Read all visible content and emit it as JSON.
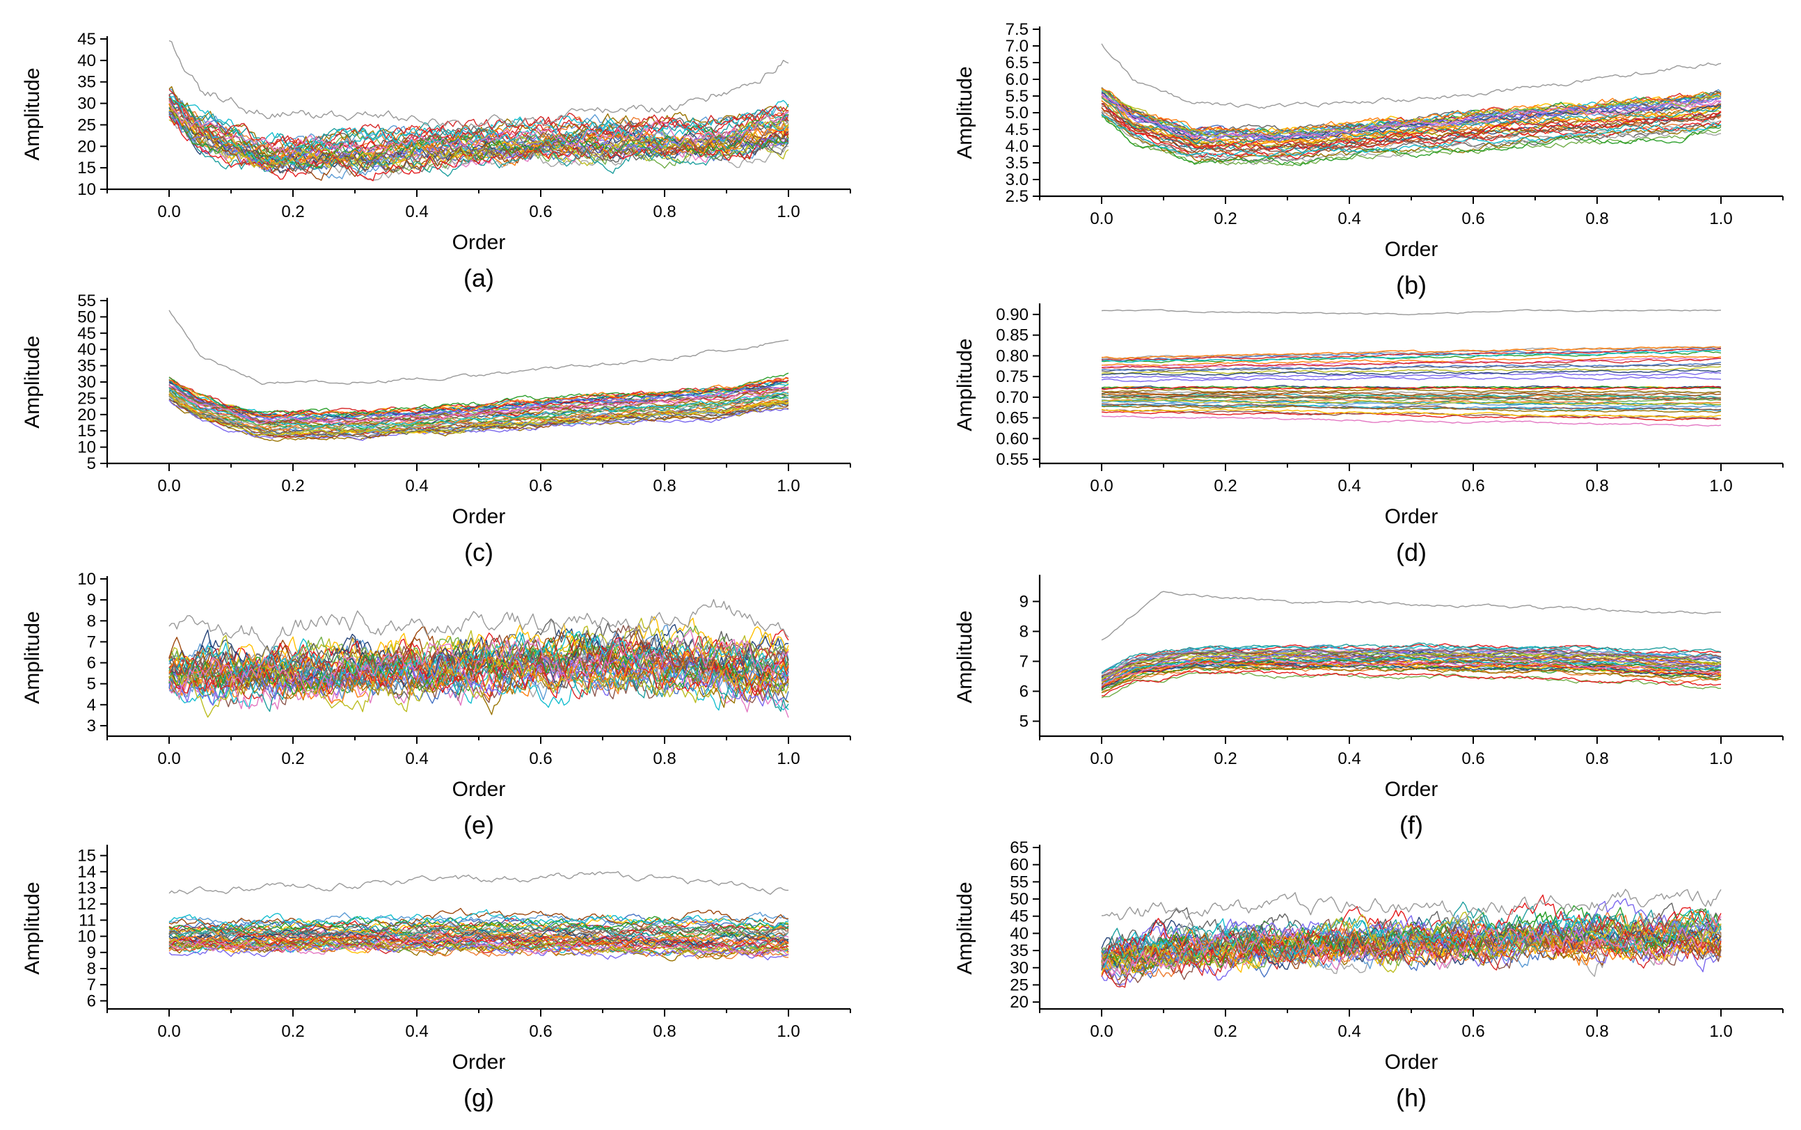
{
  "chart_data": [
    {
      "panel": "(a)",
      "type": "line",
      "xlabel": "Order",
      "ylabel": "Amplitude",
      "xlim": [
        -0.1,
        1.1
      ],
      "ylim": [
        10,
        45
      ],
      "xticks": [
        0.0,
        0.2,
        0.4,
        0.6,
        0.8,
        1.0
      ],
      "xtick_labels": [
        "0.0",
        "0.2",
        "0.4",
        "0.6",
        "0.8",
        "1.0"
      ],
      "yticks": [
        10,
        15,
        20,
        25,
        30,
        35,
        40,
        45
      ],
      "ytick_labels": [
        "10",
        "15",
        "20",
        "25",
        "30",
        "35",
        "40",
        "45"
      ],
      "series_count": 40,
      "profile": {
        "x": [
          0,
          0.05,
          0.15,
          0.3,
          0.5,
          0.7,
          0.9,
          1.0
        ],
        "y": [
          30,
          24,
          18,
          19,
          21,
          22,
          22,
          25
        ]
      },
      "spread": 3.5,
      "noise": 2.2,
      "outlier": {
        "x": [
          0,
          0.05,
          0.15,
          0.5,
          0.85,
          1.0
        ],
        "y": [
          44,
          33,
          28,
          25,
          30,
          40
        ]
      }
    },
    {
      "panel": "(b)",
      "type": "line",
      "xlabel": "Order",
      "ylabel": "Amplitude",
      "xlim": [
        -0.1,
        1.1
      ],
      "ylim": [
        2.5,
        7.5
      ],
      "xticks": [
        0.0,
        0.2,
        0.4,
        0.6,
        0.8,
        1.0
      ],
      "xtick_labels": [
        "0.0",
        "0.2",
        "0.4",
        "0.6",
        "0.8",
        "1.0"
      ],
      "yticks": [
        2.5,
        3.0,
        3.5,
        4.0,
        4.5,
        5.0,
        5.5,
        6.0,
        6.5,
        7.0,
        7.5
      ],
      "ytick_labels": [
        "2.5",
        "3.0",
        "3.5",
        "4.0",
        "4.5",
        "5.0",
        "5.5",
        "6.0",
        "6.5",
        "7.0",
        "7.5"
      ],
      "series_count": 40,
      "profile": {
        "x": [
          0,
          0.05,
          0.15,
          0.3,
          0.5,
          0.7,
          0.9,
          1.0
        ],
        "y": [
          5.3,
          4.6,
          4.0,
          4.0,
          4.3,
          4.6,
          4.8,
          5.0
        ]
      },
      "spread": 0.55,
      "noise": 0.12,
      "outlier": {
        "x": [
          0,
          0.05,
          0.15,
          0.3,
          0.6,
          0.8,
          1.0
        ],
        "y": [
          7.1,
          6.0,
          5.3,
          5.2,
          5.5,
          6.0,
          6.5
        ]
      }
    },
    {
      "panel": "(c)",
      "type": "line",
      "xlabel": "Order",
      "ylabel": "Amplitude",
      "xlim": [
        -0.1,
        1.1
      ],
      "ylim": [
        5,
        55
      ],
      "xticks": [
        0.0,
        0.2,
        0.4,
        0.6,
        0.8,
        1.0
      ],
      "xtick_labels": [
        "0.0",
        "0.2",
        "0.4",
        "0.6",
        "0.8",
        "1.0"
      ],
      "yticks": [
        5,
        10,
        15,
        20,
        25,
        30,
        35,
        40,
        45,
        50,
        55
      ],
      "ytick_labels": [
        "5",
        "10",
        "15",
        "20",
        "25",
        "30",
        "35",
        "40",
        "45",
        "50",
        "55"
      ],
      "series_count": 40,
      "profile": {
        "x": [
          0,
          0.05,
          0.15,
          0.3,
          0.5,
          0.7,
          0.9,
          1.0
        ],
        "y": [
          28,
          22,
          17,
          17,
          19,
          22,
          24,
          27
        ]
      },
      "spread": 4.5,
      "noise": 0.9,
      "outlier": {
        "x": [
          0,
          0.05,
          0.15,
          0.3,
          0.5,
          0.8,
          1.0
        ],
        "y": [
          52,
          38,
          30,
          30,
          32,
          37,
          43
        ]
      }
    },
    {
      "panel": "(d)",
      "type": "line",
      "xlabel": "Order",
      "ylabel": "Amplitude",
      "xlim": [
        -0.1,
        1.1
      ],
      "ylim": [
        0.54,
        0.92
      ],
      "xticks": [
        0.0,
        0.2,
        0.4,
        0.6,
        0.8,
        1.0
      ],
      "xtick_labels": [
        "0.0",
        "0.2",
        "0.4",
        "0.6",
        "0.8",
        "1.0"
      ],
      "yticks": [
        0.55,
        0.6,
        0.65,
        0.7,
        0.75,
        0.8,
        0.85,
        0.9
      ],
      "ytick_labels": [
        "0.55",
        "0.60",
        "0.65",
        "0.70",
        "0.75",
        "0.80",
        "0.85",
        "0.90"
      ],
      "series_count": 40,
      "profile": {
        "x": [
          0,
          1.0
        ],
        "y": [
          0.72,
          0.72
        ]
      },
      "spread": 0.09,
      "noise": 0.003,
      "outlier": {
        "x": [
          0,
          0.5,
          0.7,
          1.0
        ],
        "y": [
          0.91,
          0.9,
          0.91,
          0.91
        ]
      }
    },
    {
      "panel": "(e)",
      "type": "line",
      "xlabel": "Order",
      "ylabel": "Amplitude",
      "xlim": [
        -0.1,
        1.1
      ],
      "ylim": [
        2.5,
        10
      ],
      "xticks": [
        0.0,
        0.2,
        0.4,
        0.6,
        0.8,
        1.0
      ],
      "xtick_labels": [
        "0.0",
        "0.2",
        "0.4",
        "0.6",
        "0.8",
        "1.0"
      ],
      "yticks": [
        3,
        4,
        5,
        6,
        7,
        8,
        9,
        10
      ],
      "ytick_labels": [
        "3",
        "4",
        "5",
        "6",
        "7",
        "8",
        "9",
        "10"
      ],
      "series_count": 40,
      "profile": {
        "x": [
          0,
          0.2,
          0.5,
          0.75,
          1.0
        ],
        "y": [
          5.5,
          5.6,
          5.9,
          6.2,
          5.5
        ]
      },
      "spread": 0.7,
      "noise": 0.9,
      "outlier": {
        "x": [
          0,
          0.3,
          0.6,
          0.9,
          1.0
        ],
        "y": [
          7.5,
          7.8,
          8.0,
          8.6,
          7.0
        ]
      }
    },
    {
      "panel": "(f)",
      "type": "line",
      "xlabel": "Order",
      "ylabel": "Amplitude",
      "xlim": [
        -0.1,
        1.1
      ],
      "ylim": [
        4.5,
        9.8
      ],
      "xticks": [
        0.0,
        0.2,
        0.4,
        0.6,
        0.8,
        1.0
      ],
      "xtick_labels": [
        "0.0",
        "0.2",
        "0.4",
        "0.6",
        "0.8",
        "1.0"
      ],
      "yticks": [
        5,
        6,
        7,
        8,
        9
      ],
      "ytick_labels": [
        "5",
        "6",
        "7",
        "8",
        "9"
      ],
      "series_count": 40,
      "profile": {
        "x": [
          0,
          0.05,
          0.15,
          0.5,
          0.8,
          1.0
        ],
        "y": [
          6.2,
          6.7,
          7.0,
          7.0,
          6.9,
          6.7
        ]
      },
      "spread": 0.55,
      "noise": 0.08,
      "outlier": {
        "x": [
          0,
          0.1,
          0.3,
          0.5,
          0.7,
          1.0
        ],
        "y": [
          7.7,
          9.3,
          9.0,
          8.9,
          8.8,
          8.6
        ]
      }
    },
    {
      "panel": "(g)",
      "type": "line",
      "xlabel": "Order",
      "ylabel": "Amplitude",
      "xlim": [
        -0.1,
        1.1
      ],
      "ylim": [
        5.5,
        15.5
      ],
      "xticks": [
        0.0,
        0.2,
        0.4,
        0.6,
        0.8,
        1.0
      ],
      "xtick_labels": [
        "0.0",
        "0.2",
        "0.4",
        "0.6",
        "0.8",
        "1.0"
      ],
      "yticks": [
        6,
        7,
        8,
        9,
        10,
        11,
        12,
        13,
        14,
        15
      ],
      "ytick_labels": [
        "6",
        "7",
        "8",
        "9",
        "10",
        "11",
        "12",
        "13",
        "14",
        "15"
      ],
      "series_count": 40,
      "profile": {
        "x": [
          0,
          0.5,
          1.0
        ],
        "y": [
          10.0,
          10.2,
          10.0
        ]
      },
      "spread": 1.0,
      "noise": 0.35,
      "outlier": {
        "x": [
          0,
          0.3,
          0.5,
          0.7,
          1.0
        ],
        "y": [
          12.8,
          13.2,
          13.5,
          13.8,
          12.8
        ]
      }
    },
    {
      "panel": "(h)",
      "type": "line",
      "xlabel": "Order",
      "ylabel": "Amplitude",
      "xlim": [
        -0.1,
        1.1
      ],
      "ylim": [
        18,
        65
      ],
      "xticks": [
        0.0,
        0.2,
        0.4,
        0.6,
        0.8,
        1.0
      ],
      "xtick_labels": [
        "0.0",
        "0.2",
        "0.4",
        "0.6",
        "0.8",
        "1.0"
      ],
      "yticks": [
        20,
        25,
        30,
        35,
        40,
        45,
        50,
        55,
        60,
        65
      ],
      "ytick_labels": [
        "20",
        "25",
        "30",
        "35",
        "40",
        "45",
        "50",
        "55",
        "60",
        "65"
      ],
      "series_count": 40,
      "profile": {
        "x": [
          0,
          0.1,
          0.5,
          1.0
        ],
        "y": [
          32,
          35,
          38,
          40
        ]
      },
      "spread": 3.0,
      "noise": 4.5,
      "outlier": {
        "x": [
          0,
          0.5,
          1.0
        ],
        "y": [
          45,
          48,
          50
        ]
      }
    }
  ],
  "series_colors": [
    "#4472c4",
    "#ed7d31",
    "#a5a5a5",
    "#ffc000",
    "#5b9bd5",
    "#70ad47",
    "#264478",
    "#9e480e",
    "#636363",
    "#997300",
    "#1f9f9f",
    "#e41a1c",
    "#7b68ee",
    "#d62728",
    "#2ca02c",
    "#ff7f0e",
    "#17becf",
    "#bcbd22",
    "#8c564b",
    "#e377c2"
  ],
  "outlier_color": "#999999"
}
